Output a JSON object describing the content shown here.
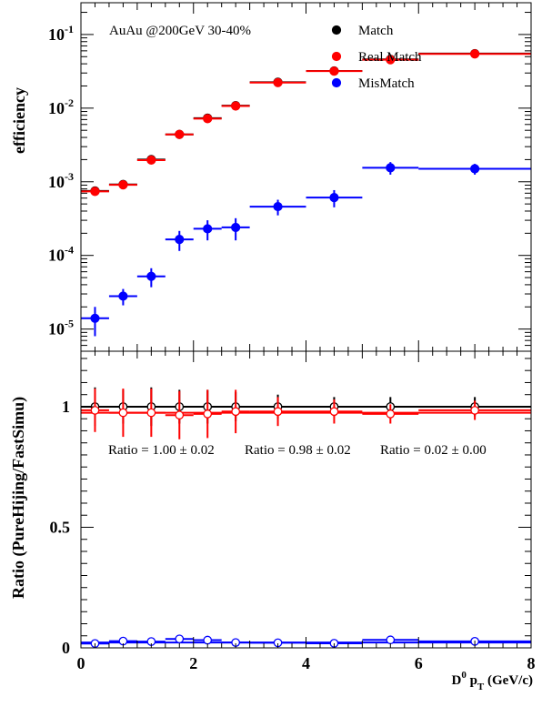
{
  "colors": {
    "match": "#000000",
    "real_match": "#ff0000",
    "mismatch": "#0000ff",
    "frame": "#000000",
    "background": "#ffffff"
  },
  "top_panel": {
    "annotation": "AuAu @200GeV  30-40%",
    "ylabel": "efficiency",
    "legend": [
      {
        "key": "match",
        "label": "Match",
        "color": "#000000"
      },
      {
        "key": "real_match",
        "label": "Real Match",
        "color": "#ff0000"
      },
      {
        "key": "mismatch",
        "label": "MisMatch",
        "color": "#0000ff"
      }
    ]
  },
  "bottom_panel": {
    "ylabel": "Ratio (PureHijing/FastSimu)",
    "ratio_texts": [
      "Ratio = 1.00 ± 0.02",
      "Ratio = 0.98 ± 0.02",
      "Ratio = 0.02 ± 0.00"
    ]
  },
  "xlabel": {
    "base": "D",
    "sup": "0",
    "mid": " p",
    "sub": "T",
    "tail": " (GeV/c)"
  },
  "chart_data": [
    {
      "type": "scatter",
      "panel": "top",
      "ylabel": "efficiency",
      "xlim": [
        0,
        8
      ],
      "ylim": [
        5e-06,
        0.27
      ],
      "yscale": "log",
      "grid": false,
      "legend_position": "top-right",
      "x_ticks": [
        0,
        2,
        4,
        6,
        8
      ],
      "y_ticks": [
        {
          "value": 1e-05,
          "base": "10",
          "exp": "-5"
        },
        {
          "value": 0.0001,
          "base": "10",
          "exp": "-4"
        },
        {
          "value": 0.001,
          "base": "10",
          "exp": "-3"
        },
        {
          "value": 0.01,
          "base": "10",
          "exp": "-2"
        },
        {
          "value": 0.1,
          "base": "10",
          "exp": "-1"
        }
      ],
      "bins": [
        [
          0,
          0.5
        ],
        [
          0.5,
          1
        ],
        [
          1,
          1.5
        ],
        [
          1.5,
          2
        ],
        [
          2,
          2.5
        ],
        [
          2.5,
          3
        ],
        [
          3,
          4
        ],
        [
          4,
          5
        ],
        [
          5,
          6
        ],
        [
          6,
          8
        ]
      ],
      "x": [
        0.25,
        0.75,
        1.25,
        1.75,
        2.25,
        2.75,
        3.5,
        4.5,
        5.5,
        7.0
      ],
      "series": [
        {
          "name": "Match",
          "key": "match",
          "values": [
            0.00075,
            0.00092,
            0.002,
            0.0044,
            0.0073,
            0.0108,
            0.0225,
            0.032,
            0.046,
            0.055
          ],
          "errors": [
            4e-05,
            5e-05,
            0.0001,
            0.0002,
            0.0003,
            0.0004,
            0.0008,
            0.0012,
            0.0015,
            0.002
          ]
        },
        {
          "name": "Real Match",
          "key": "real_match",
          "values": [
            0.00074,
            0.00091,
            0.00197,
            0.0044,
            0.0072,
            0.0107,
            0.0222,
            0.0318,
            0.0455,
            0.0545
          ],
          "errors": [
            4e-05,
            5e-05,
            0.0001,
            0.0002,
            0.0003,
            0.0004,
            0.0008,
            0.0012,
            0.0015,
            0.002
          ]
        },
        {
          "name": "MisMatch",
          "key": "mismatch",
          "values": [
            1.4e-05,
            2.8e-05,
            5.2e-05,
            0.000165,
            0.00023,
            0.00024,
            0.00046,
            0.00061,
            0.00155,
            0.0015
          ],
          "errors": [
            6e-06,
            7e-06,
            1.5e-05,
            5e-05,
            7e-05,
            8e-05,
            0.00011,
            0.00016,
            0.0003,
            0.00025
          ]
        }
      ]
    },
    {
      "type": "scatter",
      "panel": "bottom",
      "ylabel": "Ratio (PureHijing/FastSimu)",
      "xlim": [
        0,
        8
      ],
      "ylim": [
        0,
        1.23
      ],
      "yscale": "linear",
      "grid": false,
      "x_ticks": [
        0,
        2,
        4,
        6,
        8
      ],
      "y_ticks": [
        {
          "value": 0,
          "label": "0"
        },
        {
          "value": 0.5,
          "label": "0.5"
        },
        {
          "value": 1,
          "label": "1"
        }
      ],
      "fit_lines": [
        {
          "key": "match",
          "value": 1.0
        },
        {
          "key": "real_match",
          "value": 0.975
        },
        {
          "key": "mismatch",
          "value": 0.022
        }
      ],
      "bins": [
        [
          0,
          0.5
        ],
        [
          0.5,
          1
        ],
        [
          1,
          1.5
        ],
        [
          1.5,
          2
        ],
        [
          2,
          2.5
        ],
        [
          2.5,
          3
        ],
        [
          3,
          4
        ],
        [
          4,
          5
        ],
        [
          5,
          6
        ],
        [
          6,
          8
        ]
      ],
      "x": [
        0.25,
        0.75,
        1.25,
        1.75,
        2.25,
        2.75,
        3.5,
        4.5,
        5.5,
        7.0
      ],
      "series": [
        {
          "name": "Match",
          "key": "match",
          "values": [
            1.0,
            1.0,
            1.0,
            1.0,
            1.0,
            1.0,
            1.0,
            1.0,
            1.0,
            1.0
          ],
          "errors": [
            0.08,
            0.07,
            0.08,
            0.07,
            0.07,
            0.06,
            0.05,
            0.04,
            0.04,
            0.04
          ]
        },
        {
          "name": "Real Match",
          "key": "real_match",
          "values": [
            0.985,
            0.975,
            0.975,
            0.965,
            0.97,
            0.98,
            0.98,
            0.98,
            0.97,
            0.985
          ],
          "errors": [
            0.09,
            0.1,
            0.1,
            0.1,
            0.1,
            0.09,
            0.06,
            0.05,
            0.04,
            0.04
          ]
        },
        {
          "name": "MisMatch",
          "key": "mismatch",
          "values": [
            0.018,
            0.028,
            0.026,
            0.037,
            0.032,
            0.022,
            0.021,
            0.019,
            0.033,
            0.027
          ],
          "errors": [
            0.002,
            0.002,
            0.002,
            0.002,
            0.002,
            0.002,
            0.002,
            0.002,
            0.002,
            0.002
          ]
        }
      ]
    }
  ]
}
